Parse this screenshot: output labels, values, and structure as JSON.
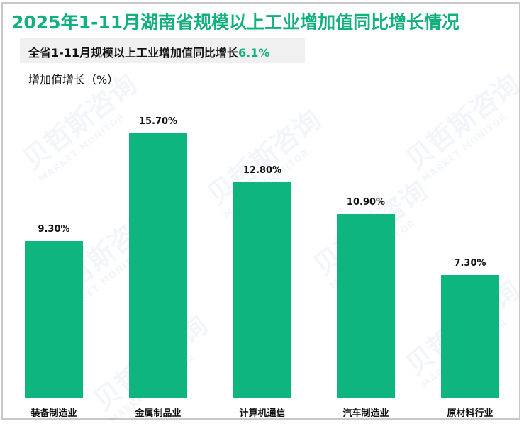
{
  "title_prefix": "2025年1-11月",
  "title_rest": "湖南省规模以上工业增加值同比增长情况",
  "subtitle": {
    "text": "全省1-11月规模以上工业增加值同比增长",
    "highlight": "6.1%"
  },
  "ylabel": "增加值增长（%）",
  "watermark": {
    "cn": "贝哲斯咨询",
    "en": "MARKET MONITOR"
  },
  "colors": {
    "bar": "#0fb57f",
    "title": "#12b07c",
    "accent": "#12b07c"
  },
  "chart_data": {
    "type": "bar",
    "title": "2025年1-11月湖南省规模以上工业增加值同比增长情况",
    "subtitle": "全省1-11月规模以上工业增加值同比增长6.1%",
    "xlabel": "",
    "ylabel": "增加值增长（%）",
    "categories": [
      "装备制造业",
      "金属制品业",
      "计算机通信",
      "汽车制造业",
      "原材料行业"
    ],
    "values": [
      9.3,
      15.7,
      12.8,
      10.9,
      7.3
    ],
    "labels": [
      "9.30%",
      "15.70%",
      "12.80%",
      "10.90%",
      "7.30%"
    ],
    "ylim": [
      0,
      17.5
    ],
    "grid": false,
    "legend": null
  }
}
